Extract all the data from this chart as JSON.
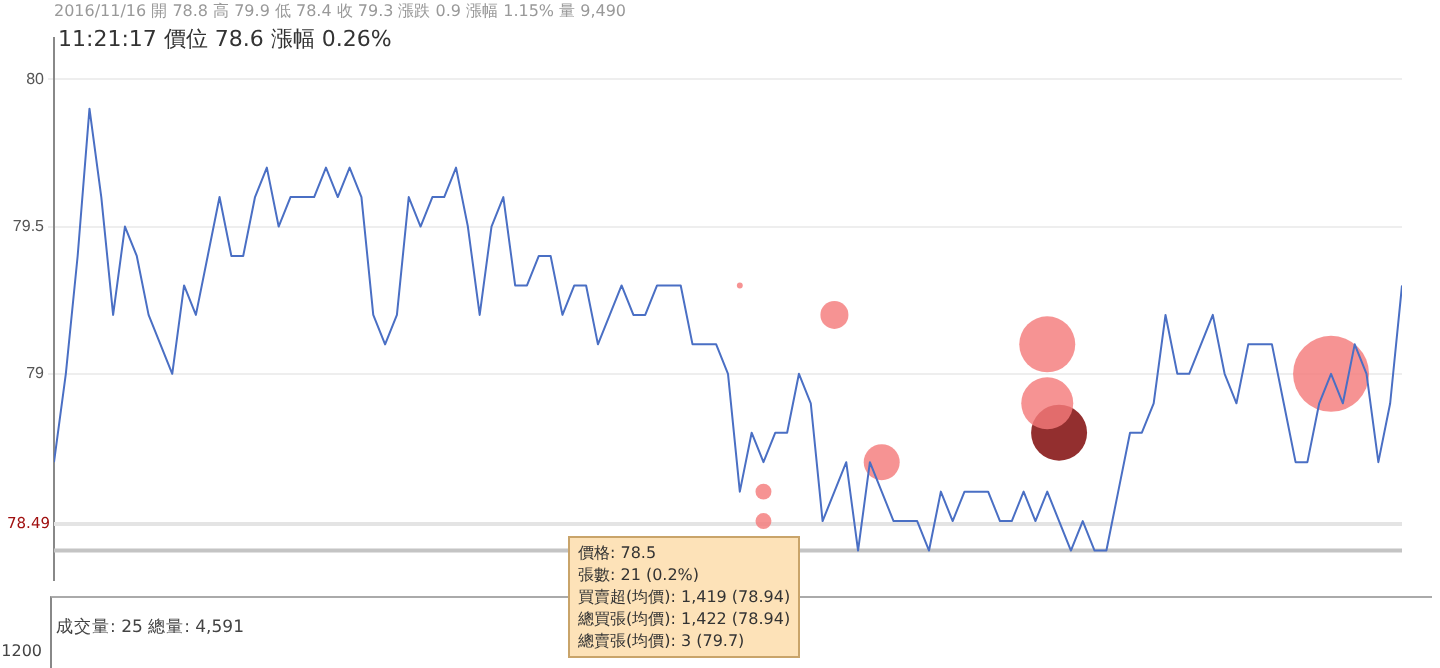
{
  "chart_data": {
    "type": "line",
    "title": "2016/11/16 開 78.8 高 79.9 低 78.4 收 79.3 漲跌 0.9 漲幅 1.15% 量 9,490",
    "subtitle": "11:21:17 價位 78.6 漲幅 0.26%",
    "categories": [
      null,
      null,
      null,
      null,
      null,
      null,
      null,
      null,
      null,
      null,
      null,
      null,
      null,
      null,
      null,
      null,
      null,
      null,
      null,
      null,
      null,
      null,
      null,
      null,
      null,
      null,
      null,
      null,
      null,
      null,
      null,
      null,
      null,
      null,
      null,
      null,
      null,
      null,
      null,
      null,
      null,
      null,
      null,
      null,
      null,
      null,
      null,
      null,
      null,
      null,
      null,
      null,
      null,
      null,
      null,
      null,
      null,
      null,
      null,
      null,
      null,
      null,
      null,
      null,
      null,
      null,
      null,
      null,
      null,
      null,
      null,
      null,
      null,
      null,
      null,
      null,
      null,
      null,
      null,
      null,
      null,
      null,
      null,
      null,
      null,
      null,
      null,
      null,
      null,
      null,
      null,
      null,
      null,
      null,
      null,
      null,
      null,
      null,
      null,
      null,
      null,
      null,
      null,
      null,
      null,
      null,
      null,
      null,
      null,
      null,
      null,
      null,
      null,
      null,
      null
    ],
    "series": [
      {
        "type": "line",
        "color": "#4a6fc4",
        "values": [
          78.7,
          79.0,
          79.4,
          79.9,
          79.6,
          79.2,
          79.5,
          79.4,
          79.2,
          79.1,
          79.0,
          79.3,
          79.2,
          79.4,
          79.6,
          79.4,
          79.4,
          79.6,
          79.7,
          79.5,
          79.6,
          79.6,
          79.6,
          79.7,
          79.6,
          79.7,
          79.6,
          79.2,
          79.1,
          79.2,
          79.6,
          79.5,
          79.6,
          79.6,
          79.7,
          79.5,
          79.2,
          79.5,
          79.6,
          79.3,
          79.3,
          79.4,
          79.4,
          79.2,
          79.3,
          79.3,
          79.1,
          79.2,
          79.3,
          79.2,
          79.2,
          79.3,
          79.3,
          79.3,
          79.1,
          79.1,
          79.1,
          79.0,
          78.6,
          78.8,
          78.7,
          78.8,
          78.8,
          79.0,
          78.9,
          78.5,
          78.6,
          78.7,
          78.4,
          78.7,
          78.6,
          78.5,
          78.5,
          78.5,
          78.4,
          78.6,
          78.5,
          78.6,
          78.6,
          78.6,
          78.5,
          78.5,
          78.6,
          78.5,
          78.6,
          78.5,
          78.4,
          78.5,
          78.4,
          78.4,
          78.6,
          78.8,
          78.8,
          78.9,
          79.2,
          79.0,
          79.0,
          79.1,
          79.2,
          79.0,
          78.9,
          79.1,
          79.1,
          79.1,
          78.9,
          78.7,
          78.7,
          78.9,
          79.0,
          78.9,
          79.1,
          79.0,
          78.7,
          78.9,
          79.3
        ]
      },
      {
        "type": "bubble",
        "color": "#f47a7a",
        "values": [
          null,
          null,
          null,
          null,
          null,
          null,
          null,
          null,
          null,
          null,
          null,
          null,
          null,
          null,
          null,
          null,
          null,
          null,
          null,
          null,
          null,
          null,
          null,
          null,
          null,
          null,
          null,
          null,
          null,
          null,
          null,
          null,
          null,
          null,
          null,
          null,
          null,
          null,
          null,
          null,
          null,
          null,
          null,
          null,
          null,
          null,
          null,
          null,
          null,
          null,
          null,
          null,
          null,
          null,
          null,
          null,
          null,
          null,
          79.3,
          null,
          78.6,
          null,
          null,
          null,
          null,
          null,
          79.2,
          null,
          null,
          null,
          78.7,
          null,
          null,
          null,
          null,
          null,
          null,
          null,
          null,
          null,
          null,
          null,
          null,
          null,
          79.1,
          null,
          null,
          null,
          null,
          null,
          null,
          null,
          null,
          null,
          null,
          null,
          null,
          null,
          null,
          null,
          null,
          null,
          null,
          null,
          null,
          null,
          null,
          null,
          79.0,
          null,
          null,
          null,
          null,
          null,
          null
        ],
        "sizes": [
          null,
          null,
          null,
          null,
          null,
          null,
          null,
          null,
          null,
          null,
          null,
          null,
          null,
          null,
          null,
          null,
          null,
          null,
          null,
          null,
          null,
          null,
          null,
          null,
          null,
          null,
          null,
          null,
          null,
          null,
          null,
          null,
          null,
          null,
          null,
          null,
          null,
          null,
          null,
          null,
          null,
          null,
          null,
          null,
          null,
          null,
          null,
          null,
          null,
          null,
          null,
          null,
          null,
          null,
          null,
          null,
          null,
          null,
          0.006,
          null,
          0.044,
          null,
          null,
          null,
          null,
          null,
          0.136,
          null,
          null,
          null,
          0.224,
          null,
          null,
          null,
          null,
          null,
          null,
          null,
          null,
          null,
          null,
          null,
          null,
          null,
          0.543,
          null,
          null,
          null,
          null,
          null,
          null,
          null,
          null,
          null,
          null,
          null,
          null,
          null,
          null,
          null,
          null,
          null,
          null,
          null,
          null,
          null,
          null,
          null,
          1,
          null,
          null,
          null,
          null,
          null,
          null
        ]
      },
      {
        "type": "bubble",
        "color": "#f47a7a",
        "values": [
          null,
          null,
          null,
          null,
          null,
          null,
          null,
          null,
          null,
          null,
          null,
          null,
          null,
          null,
          null,
          null,
          null,
          null,
          null,
          null,
          null,
          null,
          null,
          null,
          null,
          null,
          null,
          null,
          null,
          null,
          null,
          null,
          null,
          null,
          null,
          null,
          null,
          null,
          null,
          null,
          null,
          null,
          null,
          null,
          null,
          null,
          null,
          null,
          null,
          null,
          null,
          null,
          null,
          null,
          null,
          null,
          null,
          null,
          null,
          null,
          78.5,
          null,
          null,
          null,
          null,
          null,
          null,
          null,
          null,
          null,
          null,
          null,
          null,
          null,
          null,
          null,
          null,
          null,
          null,
          null,
          null,
          null,
          null,
          null,
          78.9,
          null,
          null,
          null,
          null,
          null,
          null,
          null,
          null,
          null,
          null,
          null,
          null,
          null,
          null,
          null,
          null,
          null,
          null,
          null,
          null,
          null,
          null,
          null,
          null,
          null,
          null,
          null,
          null,
          null,
          null
        ],
        "sizes": [
          null,
          null,
          null,
          null,
          null,
          null,
          null,
          null,
          null,
          null,
          null,
          null,
          null,
          null,
          null,
          null,
          null,
          null,
          null,
          null,
          null,
          null,
          null,
          null,
          null,
          null,
          null,
          null,
          null,
          null,
          null,
          null,
          null,
          null,
          null,
          null,
          null,
          null,
          null,
          null,
          null,
          null,
          null,
          null,
          null,
          null,
          null,
          null,
          null,
          null,
          null,
          null,
          null,
          null,
          null,
          null,
          null,
          null,
          null,
          null,
          0.044,
          null,
          null,
          null,
          null,
          null,
          null,
          null,
          null,
          null,
          null,
          null,
          null,
          null,
          null,
          null,
          null,
          null,
          null,
          null,
          null,
          null,
          null,
          null,
          0.468,
          null,
          null,
          null,
          null,
          null,
          null,
          null,
          null,
          null,
          null,
          null,
          null,
          null,
          null,
          null,
          null,
          null,
          null,
          null,
          null,
          null,
          null,
          null,
          null,
          null,
          null,
          null,
          null,
          null,
          null
        ]
      },
      {
        "type": "bubble",
        "color": "#7a0000",
        "values": [
          null,
          null,
          null,
          null,
          null,
          null,
          null,
          null,
          null,
          null,
          null,
          null,
          null,
          null,
          null,
          null,
          null,
          null,
          null,
          null,
          null,
          null,
          null,
          null,
          null,
          null,
          null,
          null,
          null,
          null,
          null,
          null,
          null,
          null,
          null,
          null,
          null,
          null,
          null,
          null,
          null,
          null,
          null,
          null,
          null,
          null,
          null,
          null,
          null,
          null,
          null,
          null,
          null,
          null,
          null,
          null,
          null,
          null,
          null,
          null,
          null,
          null,
          null,
          null,
          null,
          null,
          null,
          null,
          null,
          null,
          null,
          null,
          null,
          null,
          null,
          null,
          null,
          null,
          null,
          null,
          null,
          null,
          null,
          null,
          null,
          78.8,
          null,
          null,
          null,
          null,
          null,
          null,
          null,
          null,
          null,
          null,
          null,
          null,
          null,
          null,
          null,
          null,
          null,
          null,
          null,
          null,
          null,
          null,
          null,
          null,
          null,
          null,
          null,
          null,
          null
        ],
        "sizes": [
          null,
          null,
          null,
          null,
          null,
          null,
          null,
          null,
          null,
          null,
          null,
          null,
          null,
          null,
          null,
          null,
          null,
          null,
          null,
          null,
          null,
          null,
          null,
          null,
          null,
          null,
          null,
          null,
          null,
          null,
          null,
          null,
          null,
          null,
          null,
          null,
          null,
          null,
          null,
          null,
          null,
          null,
          null,
          null,
          null,
          null,
          null,
          null,
          null,
          null,
          null,
          null,
          null,
          null,
          null,
          null,
          null,
          null,
          null,
          null,
          null,
          null,
          null,
          null,
          null,
          null,
          null,
          null,
          null,
          null,
          null,
          null,
          null,
          null,
          null,
          null,
          null,
          null,
          null,
          null,
          null,
          null,
          null,
          null,
          null,
          0.543,
          null,
          null,
          null,
          null,
          null,
          null,
          null,
          null,
          null,
          null,
          null,
          null,
          null,
          null,
          null,
          null,
          null,
          null,
          null,
          null,
          null,
          null,
          null,
          null,
          null,
          null,
          null,
          null,
          null
        ]
      }
    ],
    "ylim": [
      78.3,
      80.14
    ],
    "yticks": [
      80,
      79.5,
      79
    ],
    "grid": "y",
    "legend": false,
    "ref_lines": [
      {
        "axis": "y",
        "value": 78.49,
        "label": "78.49",
        "color": "#e4e4e4"
      },
      {
        "axis": "y",
        "value": 78.4,
        "label": null,
        "color": "#c4c4c4"
      }
    ],
    "annotations": [
      "價格: 78.5",
      "張數: 21 (0.2%)",
      "買賣超(均價): 1,419 (78.94)",
      "總買張(均價): 1,422 (78.94)",
      "總賣張(均價): 3 (79.7)",
      "成交量: 25  總量: 4,591",
      "1200"
    ]
  }
}
